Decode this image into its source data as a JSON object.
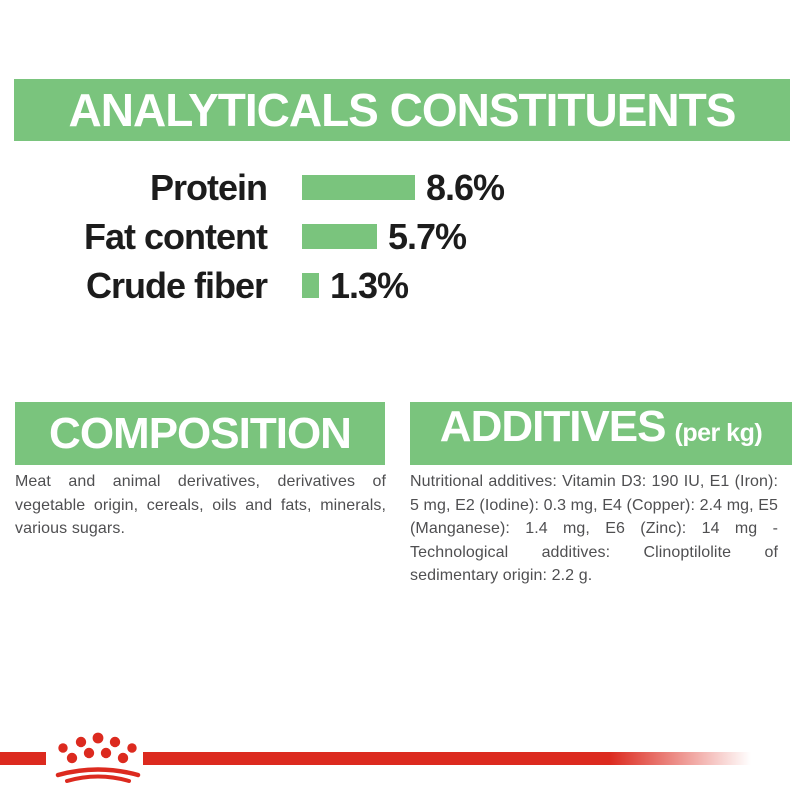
{
  "header": {
    "title": "ANALYTICALS CONSTITUENTS"
  },
  "chart_data": {
    "type": "bar",
    "orientation": "horizontal",
    "categories": [
      "Protein",
      "Fat content",
      "Crude fiber"
    ],
    "values": [
      8.6,
      5.7,
      1.3
    ],
    "value_labels": [
      "8.6%",
      "5.7%",
      "1.3%"
    ],
    "unit": "%",
    "xlim": [
      0,
      8.6
    ],
    "grid": false,
    "legend": false,
    "bar_color": "#7ac47d"
  },
  "sections": {
    "composition": {
      "title": "COMPOSITION",
      "body": "Meat and animal derivatives, derivatives of vegetable origin, cereals, oils and fats, minerals, various sugars."
    },
    "additives": {
      "title": "ADDITIVES",
      "title_suffix": "(per kg)",
      "body": "Nutritional additives: Vitamin D3: 190 IU, E1 (Iron): 5 mg, E2 (Iodine): 0.3 mg, E4 (Copper): 2.4 mg, E5 (Manganese): 1.4 mg, E6 (Zinc): 14 mg - Technological additives: Clinoptilolite of sedimentary origin: 2.2 g."
    }
  },
  "footer": {
    "logo": "royal-canin-crown"
  },
  "colors": {
    "green": "#7ac47d",
    "red": "#dc2a1f",
    "text_dark": "#1c1c1c",
    "text_gray": "#4f4f51"
  }
}
